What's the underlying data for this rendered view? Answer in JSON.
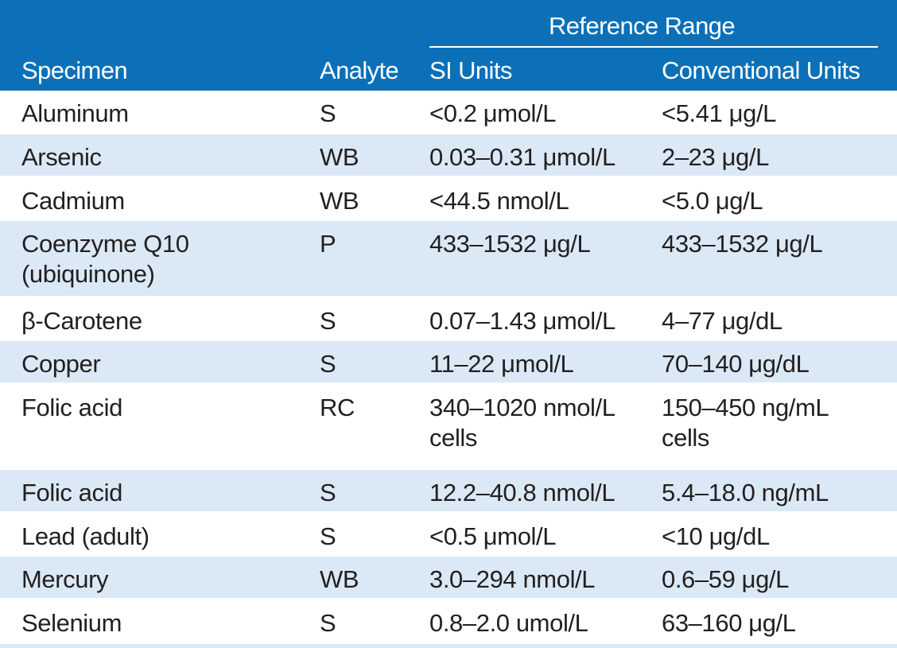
{
  "header": {
    "group_title": "Reference Range",
    "columns": {
      "specimen": "Specimen",
      "analyte": "Analyte",
      "si_units": "SI Units",
      "conventional_units": "Conventional Units"
    }
  },
  "rows": [
    {
      "specimen": "Aluminum",
      "specimen_line2": "",
      "analyte": "S",
      "si": "<0.2 μmol/L",
      "si_line2": "",
      "conv": "<5.41 μg/L",
      "conv_line2": ""
    },
    {
      "specimen": "Arsenic",
      "specimen_line2": "",
      "analyte": "WB",
      "si": "0.03–0.31 μmol/L",
      "si_line2": "",
      "conv": "2–23 μg/L",
      "conv_line2": ""
    },
    {
      "specimen": "Cadmium",
      "specimen_line2": "",
      "analyte": "WB",
      "si": "<44.5 nmol/L",
      "si_line2": "",
      "conv": "<5.0 μg/L",
      "conv_line2": ""
    },
    {
      "specimen": "Coenzyme Q10",
      "specimen_line2": "(ubiquinone)",
      "analyte": "P",
      "si": "433–1532 μg/L",
      "si_line2": "",
      "conv": "433–1532 μg/L",
      "conv_line2": ""
    },
    {
      "specimen": "β-Carotene",
      "specimen_line2": "",
      "analyte": "S",
      "si": "0.07–1.43 μmol/L",
      "si_line2": "",
      "conv": "4–77 μg/dL",
      "conv_line2": ""
    },
    {
      "specimen": "Copper",
      "specimen_line2": "",
      "analyte": "S",
      "si": "11–22 μmol/L",
      "si_line2": "",
      "conv": "70–140 μg/dL",
      "conv_line2": ""
    },
    {
      "specimen": "Folic acid",
      "specimen_line2": "",
      "analyte": "RC",
      "si": "340–1020 nmol/L",
      "si_line2": "cells",
      "conv": "150–450 ng/mL",
      "conv_line2": "cells"
    },
    {
      "specimen": "Folic acid",
      "specimen_line2": "",
      "analyte": "S",
      "si": "12.2–40.8 nmol/L",
      "si_line2": "",
      "conv": "5.4–18.0 ng/mL",
      "conv_line2": ""
    },
    {
      "specimen": "Lead (adult)",
      "specimen_line2": "",
      "analyte": "S",
      "si": "<0.5 μmol/L",
      "si_line2": "",
      "conv": "<10 μg/dL",
      "conv_line2": ""
    },
    {
      "specimen": "Mercury",
      "specimen_line2": "",
      "analyte": "WB",
      "si": "3.0–294 nmol/L",
      "si_line2": "",
      "conv": "0.6–59 μg/L",
      "conv_line2": ""
    },
    {
      "specimen": "Selenium",
      "specimen_line2": "",
      "analyte": "S",
      "si": "0.8–2.0 umol/L",
      "si_line2": "",
      "conv": "63–160 μg/L",
      "conv_line2": ""
    }
  ],
  "colors": {
    "header_bg": "#0b70b8",
    "row_alt_bg": "#dbe9f6",
    "text": "#231f20"
  }
}
